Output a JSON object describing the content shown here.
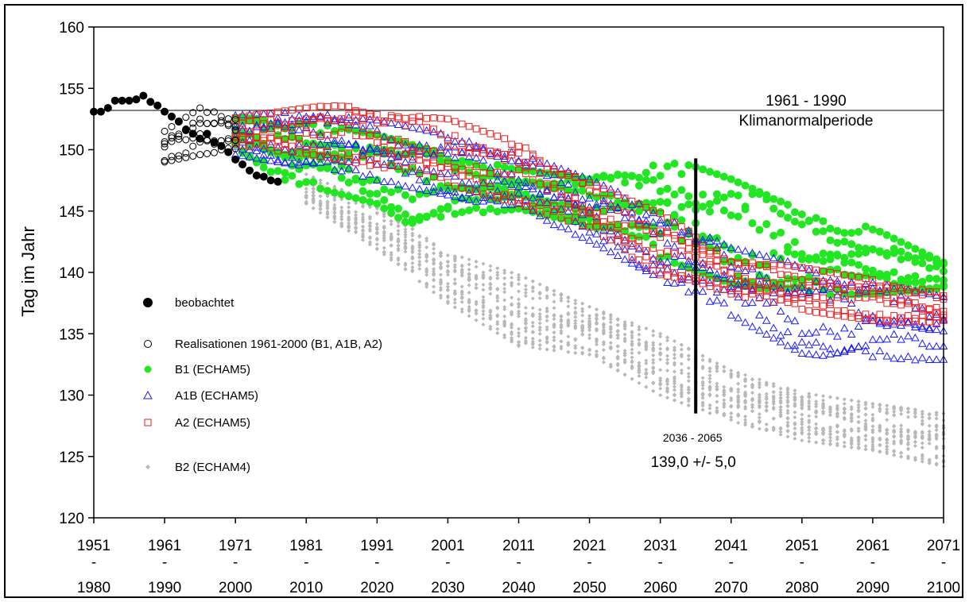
{
  "chart_data": {
    "type": "scatter",
    "ylabel": "Tag im Jahr",
    "xlabel": "",
    "ylim": [
      120,
      160
    ],
    "yticks": [
      120,
      125,
      130,
      135,
      140,
      145,
      150,
      155,
      160
    ],
    "x_categories": [
      {
        "top": "1951",
        "mid": "-",
        "bottom": "1980"
      },
      {
        "top": "1961",
        "mid": "-",
        "bottom": "1990"
      },
      {
        "top": "1971",
        "mid": "-",
        "bottom": "2000"
      },
      {
        "top": "1981",
        "mid": "-",
        "bottom": "2010"
      },
      {
        "top": "1991",
        "mid": "-",
        "bottom": "2020"
      },
      {
        "top": "2001",
        "mid": "-",
        "bottom": "2030"
      },
      {
        "top": "2011",
        "mid": "-",
        "bottom": "2040"
      },
      {
        "top": "2021",
        "mid": "-",
        "bottom": "2050"
      },
      {
        "top": "2031",
        "mid": "-",
        "bottom": "2060"
      },
      {
        "top": "2041",
        "mid": "-",
        "bottom": "2070"
      },
      {
        "top": "2051",
        "mid": "-",
        "bottom": "2080"
      },
      {
        "top": "2061",
        "mid": "-",
        "bottom": "2090"
      },
      {
        "top": "2071",
        "mid": "-",
        "bottom": "2100"
      }
    ],
    "xlim": [
      1951,
      2071
    ],
    "reference_line": {
      "y": 153.2,
      "label_line1": "1961 - 1990",
      "label_line2": "Klimanormalperiode"
    },
    "marker_line": {
      "x": 2036,
      "y_from": 128.5,
      "y_to": 149.3,
      "label_range": "2036 - 2065",
      "label_value": "139,0 +/- 5,0"
    },
    "legend": [
      {
        "key": "observed",
        "label": "beobachtet",
        "marker": "filled-circle",
        "color": "#000000"
      },
      {
        "key": "realisations",
        "label": "Realisationen 1961-2000 (B1, A1B, A2)",
        "marker": "open-circle",
        "color": "#000000"
      },
      {
        "key": "b1",
        "label": "B1 (ECHAM5)",
        "marker": "filled-circle",
        "color": "#22e622"
      },
      {
        "key": "a1b",
        "label": "A1B (ECHAM5)",
        "marker": "open-triangle",
        "color": "#1a1aff"
      },
      {
        "key": "a2",
        "label": "A2 (ECHAM5)",
        "marker": "open-square",
        "color": "#ee1c1c"
      },
      {
        "key": "b2",
        "label": "B2 (ECHAM4)",
        "marker": "small-diamond",
        "color": "#b8b8b8"
      }
    ],
    "series": [
      {
        "key": "observed",
        "name": "beobachtet",
        "points": [
          [
            1951,
            153.1
          ],
          [
            1952,
            153.1
          ],
          [
            1953,
            153.4
          ],
          [
            1954,
            154.0
          ],
          [
            1955,
            154.0
          ],
          [
            1956,
            154.0
          ],
          [
            1957,
            154.1
          ],
          [
            1958,
            154.4
          ],
          [
            1959,
            153.9
          ],
          [
            1960,
            153.6
          ],
          [
            1961,
            153.1
          ],
          [
            1962,
            152.7
          ],
          [
            1963,
            152.3
          ],
          [
            1964,
            151.6
          ],
          [
            1965,
            151.3
          ],
          [
            1966,
            150.9
          ],
          [
            1967,
            151.3
          ],
          [
            1968,
            150.6
          ],
          [
            1969,
            150.3
          ],
          [
            1970,
            149.8
          ],
          [
            1971,
            149.2
          ],
          [
            1972,
            148.8
          ],
          [
            1973,
            148.3
          ],
          [
            1974,
            147.9
          ],
          [
            1975,
            147.8
          ],
          [
            1976,
            147.5
          ],
          [
            1977,
            147.4
          ]
        ]
      },
      {
        "key": "realisations",
        "name": "Realisationen 1961-2000 (B1, A1B, A2)",
        "x_range": [
          1961,
          1971
        ],
        "envelope": {
          "lower": [
            [
              1961,
              149.0
            ],
            [
              1966,
              149.6
            ],
            [
              1971,
              150.0
            ]
          ],
          "upper": [
            [
              1961,
              151.5
            ],
            [
              1966,
              153.4
            ],
            [
              1971,
              152.6
            ]
          ]
        },
        "members": 6
      },
      {
        "key": "b1",
        "name": "B1 (ECHAM5)",
        "x_range": [
          1971,
          2071
        ],
        "envelope": {
          "lower": [
            [
              1971,
              150.3
            ],
            [
              1977,
              146.9
            ],
            [
              1981,
              147.1
            ],
            [
              1991,
              145.6
            ],
            [
              1996,
              143.7
            ],
            [
              2001,
              144.4
            ],
            [
              2011,
              145.2
            ],
            [
              2021,
              143.8
            ],
            [
              2031,
              141.2
            ],
            [
              2041,
              139.1
            ],
            [
              2051,
              138.0
            ],
            [
              2061,
              138.3
            ],
            [
              2071,
              138.7
            ]
          ],
          "upper": [
            [
              1971,
              152.6
            ],
            [
              1981,
              152.3
            ],
            [
              1991,
              151.2
            ],
            [
              2001,
              149.6
            ],
            [
              2011,
              148.4
            ],
            [
              2021,
              147.6
            ],
            [
              2031,
              149.3
            ],
            [
              2036,
              148.6
            ],
            [
              2041,
              147.6
            ],
            [
              2051,
              145.0
            ],
            [
              2061,
              143.6
            ],
            [
              2071,
              140.8
            ]
          ]
        },
        "members": 6
      },
      {
        "key": "a1b",
        "name": "A1B (ECHAM5)",
        "x_range": [
          1971,
          2071
        ],
        "envelope": {
          "lower": [
            [
              1971,
              149.6
            ],
            [
              1981,
              148.6
            ],
            [
              1991,
              147.5
            ],
            [
              2001,
              146.3
            ],
            [
              2011,
              145.0
            ],
            [
              2021,
              142.6
            ],
            [
              2031,
              139.5
            ],
            [
              2036,
              137.8
            ],
            [
              2041,
              136.5
            ],
            [
              2051,
              133.4
            ],
            [
              2061,
              132.8
            ],
            [
              2071,
              132.9
            ]
          ],
          "upper": [
            [
              1971,
              152.8
            ],
            [
              1981,
              153.1
            ],
            [
              1991,
              152.4
            ],
            [
              2001,
              151.2
            ],
            [
              2011,
              149.7
            ],
            [
              2021,
              147.6
            ],
            [
              2031,
              145.0
            ],
            [
              2036,
              143.4
            ],
            [
              2041,
              142.0
            ],
            [
              2051,
              140.6
            ],
            [
              2061,
              139.2
            ],
            [
              2071,
              138.0
            ]
          ]
        },
        "members": 6
      },
      {
        "key": "a2",
        "name": "A2 (ECHAM5)",
        "x_range": [
          1971,
          2071
        ],
        "envelope": {
          "lower": [
            [
              1971,
              150.2
            ],
            [
              1981,
              149.7
            ],
            [
              1991,
              148.6
            ],
            [
              2001,
              147.2
            ],
            [
              2011,
              145.6
            ],
            [
              2021,
              143.4
            ],
            [
              2031,
              139.8
            ],
            [
              2036,
              139.3
            ],
            [
              2041,
              138.2
            ],
            [
              2051,
              136.9
            ],
            [
              2061,
              136.1
            ],
            [
              2071,
              135.6
            ]
          ],
          "upper": [
            [
              1971,
              152.6
            ],
            [
              1981,
              153.4
            ],
            [
              1987,
              153.8
            ],
            [
              1991,
              153.0
            ],
            [
              2001,
              152.5
            ],
            [
              2011,
              150.5
            ],
            [
              2021,
              147.3
            ],
            [
              2031,
              144.8
            ],
            [
              2036,
              143.0
            ],
            [
              2041,
              141.2
            ],
            [
              2051,
              140.4
            ],
            [
              2061,
              139.4
            ],
            [
              2071,
              138.3
            ]
          ]
        },
        "members": 6
      },
      {
        "key": "b2",
        "name": "B2 (ECHAM4)",
        "x_range": [
          1981,
          2071
        ],
        "envelope": {
          "lower": [
            [
              1981,
              145.6
            ],
            [
              1991,
              141.9
            ],
            [
              2001,
              137.5
            ],
            [
              2011,
              134.0
            ],
            [
              2021,
              133.3
            ],
            [
              2031,
              130.0
            ],
            [
              2041,
              127.9
            ],
            [
              2051,
              126.3
            ],
            [
              2061,
              125.5
            ],
            [
              2071,
              124.2
            ]
          ],
          "upper": [
            [
              1981,
              148.0
            ],
            [
              1991,
              145.5
            ],
            [
              2001,
              141.6
            ],
            [
              2011,
              139.8
            ],
            [
              2021,
              137.2
            ],
            [
              2031,
              135.0
            ],
            [
              2041,
              132.0
            ],
            [
              2051,
              130.2
            ],
            [
              2061,
              129.3
            ],
            [
              2071,
              128.5
            ]
          ]
        },
        "members": 10
      }
    ]
  }
}
